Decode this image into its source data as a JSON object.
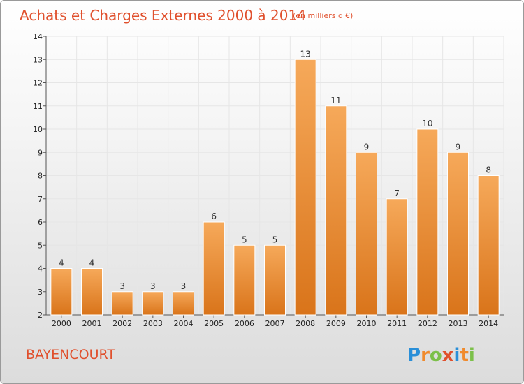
{
  "chart_data": {
    "type": "bar",
    "title": "Achats et Charges Externes 2000 à 2014",
    "unit": "(en milliers d'€)",
    "categories": [
      "2000",
      "2001",
      "2002",
      "2003",
      "2004",
      "2005",
      "2006",
      "2007",
      "2008",
      "2009",
      "2010",
      "2011",
      "2012",
      "2013",
      "2014"
    ],
    "values": [
      4,
      4,
      3,
      3,
      3,
      6,
      5,
      5,
      13,
      11,
      9,
      7,
      10,
      9,
      8
    ],
    "ylim": [
      2,
      14
    ],
    "yticks": [
      2,
      3,
      4,
      5,
      6,
      7,
      8,
      9,
      10,
      11,
      12,
      13,
      14
    ],
    "grid": true,
    "legend": "none",
    "bar_color": "#f08a2c"
  },
  "commune": "BAYENCOURT",
  "logo": {
    "letters": [
      "P",
      "r",
      "o",
      "x",
      "i",
      "t",
      "i"
    ],
    "colors": [
      "#2a8fd8",
      "#f08a2c",
      "#7cc04a",
      "#e0502d",
      "#2a8fd8",
      "#f08a2c",
      "#7cc04a"
    ]
  }
}
